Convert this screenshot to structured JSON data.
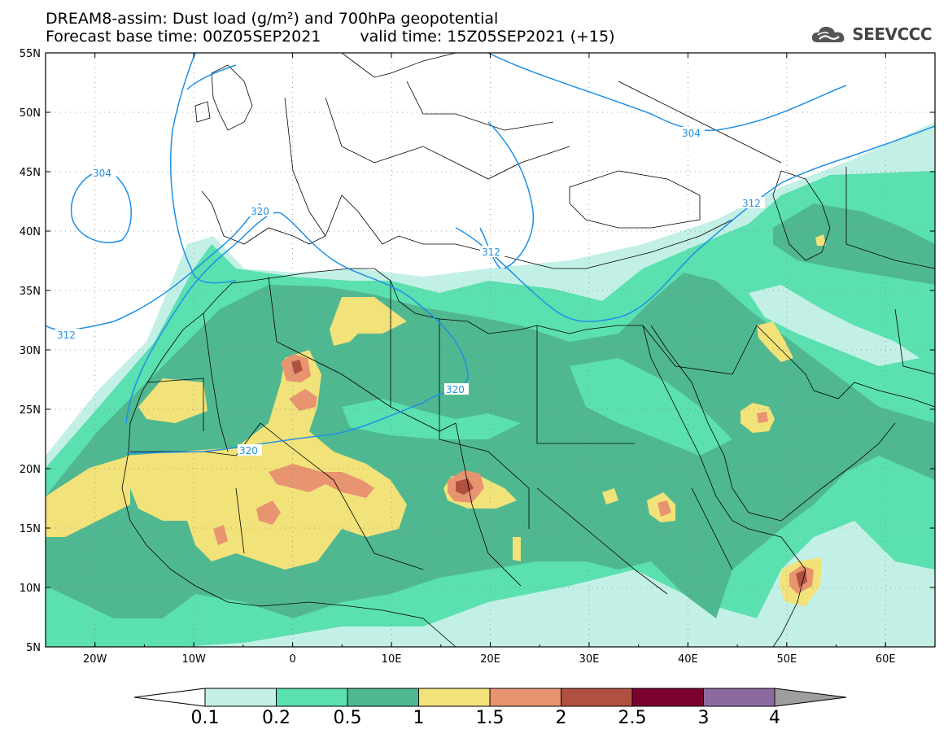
{
  "header": {
    "title_line1": "DREAM8-assim: Dust load (g/m²) and 700hPa geopotential",
    "base_time": "Forecast base time: 00Z05SEP2021",
    "valid_time": "valid time: 15Z05SEP2021 (+15)",
    "logo_text": "SEEVCCC",
    "logo_icon": "cloud-icon"
  },
  "map": {
    "lon_range": [
      -25,
      65
    ],
    "lat_range": [
      5,
      55
    ],
    "lat_labels": [
      "55N",
      "50N",
      "45N",
      "40N",
      "35N",
      "30N",
      "25N",
      "20N",
      "15N",
      "10N",
      "5N"
    ],
    "lon_labels": [
      "20W",
      "10W",
      "0",
      "10E",
      "20E",
      "30E",
      "40E",
      "50E",
      "60E"
    ],
    "contour_color": "#1e90e6",
    "contour_labels": [
      "304",
      "304",
      "320",
      "312",
      "312",
      "320",
      "320",
      "312"
    ]
  },
  "colorbar": {
    "labels": [
      "0.1",
      "0.2",
      "0.5",
      "1",
      "1.5",
      "2",
      "2.5",
      "3",
      "4"
    ],
    "colors": [
      "#c3f0e6",
      "#5be0b0",
      "#50b890",
      "#f2e27a",
      "#e89470",
      "#b05040",
      "#7a0030",
      "#8c6aa0"
    ]
  }
}
